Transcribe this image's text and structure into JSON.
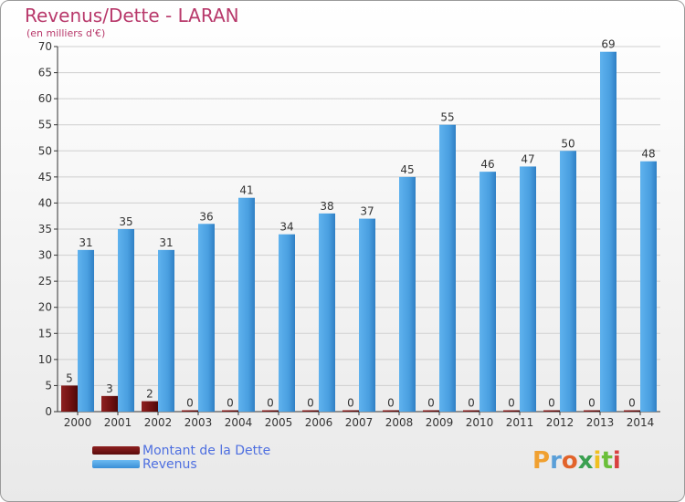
{
  "chart_data": {
    "type": "bar",
    "title": "Revenus/Dette - LARAN",
    "subtitle": "(en milliers d'€)",
    "categories": [
      "2000",
      "2001",
      "2002",
      "2003",
      "2004",
      "2005",
      "2006",
      "2007",
      "2008",
      "2009",
      "2010",
      "2011",
      "2012",
      "2013",
      "2014"
    ],
    "series": [
      {
        "name": "Montant de la Dette",
        "color": "#7a1414",
        "values": [
          5,
          3,
          2,
          0,
          0,
          0,
          0,
          0,
          0,
          0,
          0,
          0,
          0,
          0,
          0
        ]
      },
      {
        "name": "Revenus",
        "color": "#4a9fe0",
        "values": [
          31,
          35,
          31,
          36,
          41,
          34,
          38,
          37,
          45,
          55,
          46,
          47,
          50,
          69,
          48
        ]
      }
    ],
    "ylim": [
      0,
      70
    ],
    "yticks": [
      0,
      5,
      10,
      15,
      20,
      25,
      30,
      35,
      40,
      45,
      50,
      55,
      60,
      65,
      70
    ],
    "grid": true,
    "legend": "bottom-left"
  },
  "legend": {
    "items": [
      {
        "label": "Montant de la Dette",
        "color": "#6b1010"
      },
      {
        "label": "Revenus",
        "color": "#4a9fe0"
      }
    ]
  },
  "brand": {
    "text": "Proxiti"
  }
}
